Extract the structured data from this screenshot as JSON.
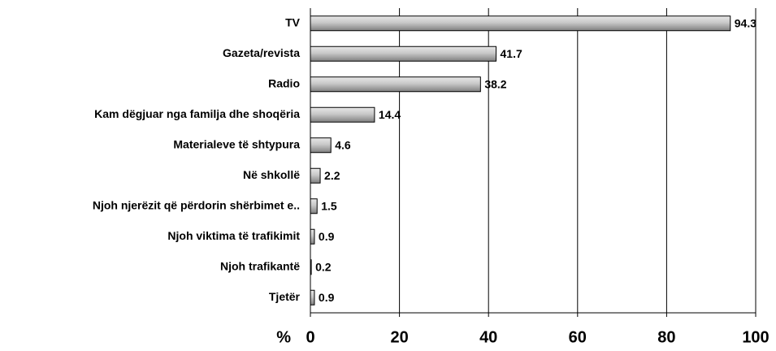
{
  "chart_data": {
    "type": "bar",
    "orientation": "horizontal",
    "categories": [
      "TV",
      "Gazeta/revista",
      "Radio",
      "Kam dëgjuar nga familja dhe shoqëria",
      "Materialeve të shtypura",
      "Në shkollë",
      "Njoh njerëzit që përdorin shërbimet e..",
      "Njoh viktima të trafikimit",
      "Njoh trafikantë",
      "Tjetër"
    ],
    "values": [
      94.3,
      41.7,
      38.2,
      14.4,
      4.6,
      2.2,
      1.5,
      0.9,
      0.2,
      0.9
    ],
    "color": "#b0b0b0",
    "x_label": "%",
    "xlim": [
      0,
      100
    ],
    "xticks": [
      0,
      20,
      40,
      60,
      80,
      100
    ],
    "grid": true
  }
}
